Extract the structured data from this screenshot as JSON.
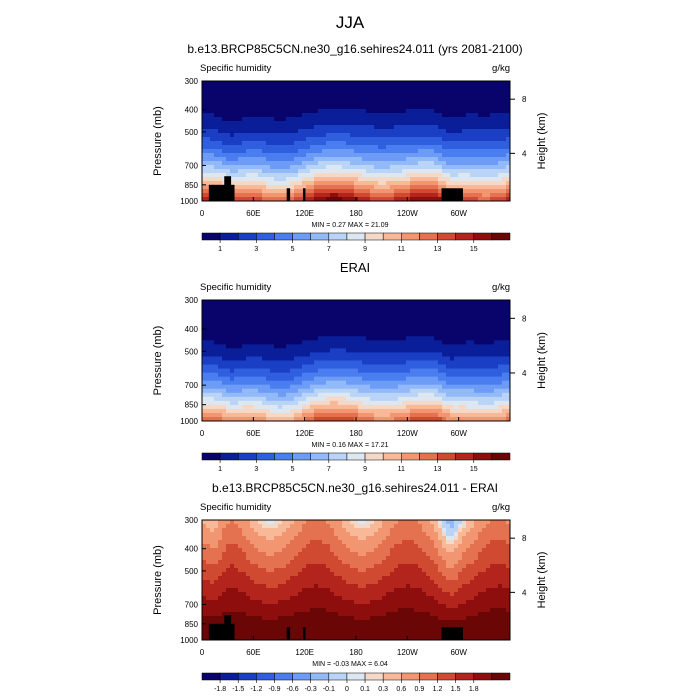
{
  "figure_title": "JJA",
  "units": "g/kg",
  "variable": "Specific humidity",
  "chart_data": [
    {
      "type": "heatmap",
      "title": "b.e13.BRCP85C5CN.ne30_g16.sehires24.011 (yrs 2081-2100)",
      "variable": "Specific humidity",
      "units": "g/kg",
      "xlabel": "",
      "ylabel": "Pressure (mb)",
      "ylabel_right": "Height (km)",
      "x_ticks": [
        "0",
        "60E",
        "120E",
        "180",
        "120W",
        "60W"
      ],
      "y_ticks": [
        "300",
        "400",
        "500",
        "700",
        "850",
        "1000"
      ],
      "y_ticks_right": [
        "8",
        "4"
      ],
      "stats": "MIN =   0.27  MAX =  21.09",
      "min": 0.27,
      "max": 21.09,
      "colorbar_labels": [
        "1",
        "3",
        "5",
        "7",
        "9",
        "11",
        "13",
        "15"
      ],
      "levels": [
        1,
        2,
        3,
        4,
        5,
        6,
        7,
        8,
        9,
        10,
        11,
        12,
        13,
        14,
        15,
        16
      ],
      "kind": "fieldA"
    },
    {
      "type": "heatmap",
      "title": "ERAI",
      "variable": "Specific humidity",
      "units": "g/kg",
      "xlabel": "",
      "ylabel": "Pressure (mb)",
      "ylabel_right": "Height (km)",
      "x_ticks": [
        "0",
        "60E",
        "120E",
        "180",
        "120W",
        "60W"
      ],
      "y_ticks": [
        "300",
        "400",
        "500",
        "700",
        "850",
        "1000"
      ],
      "y_ticks_right": [
        "8",
        "4"
      ],
      "stats": "MIN =   0.16  MAX =  17.21",
      "min": 0.16,
      "max": 17.21,
      "colorbar_labels": [
        "1",
        "3",
        "5",
        "7",
        "9",
        "11",
        "13",
        "15"
      ],
      "levels": [
        1,
        2,
        3,
        4,
        5,
        6,
        7,
        8,
        9,
        10,
        11,
        12,
        13,
        14,
        15,
        16
      ],
      "kind": "fieldB"
    },
    {
      "type": "heatmap",
      "title": "b.e13.BRCP85C5CN.ne30_g16.sehires24.011 - ERAI",
      "variable": "Specific humidity",
      "units": "g/kg",
      "xlabel": "",
      "ylabel": "Pressure (mb)",
      "ylabel_right": "Height (km)",
      "x_ticks": [
        "0",
        "60E",
        "120E",
        "180",
        "120W",
        "60W"
      ],
      "y_ticks": [
        "300",
        "400",
        "500",
        "700",
        "850",
        "1000"
      ],
      "y_ticks_right": [
        "8",
        "4"
      ],
      "stats": "MIN =  -0.03  MAX =   6.04",
      "min": -0.03,
      "max": 6.04,
      "colorbar_labels": [
        "-1.8",
        "-1.5",
        "-1.2",
        "-0.9",
        "-0.6",
        "-0.3",
        "-0.1",
        "0",
        "0.1",
        "0.3",
        "0.6",
        "0.9",
        "1.2",
        "1.5",
        "1.8"
      ],
      "levels": [
        -1.8,
        -1.5,
        -1.2,
        -0.9,
        -0.6,
        -0.3,
        -0.1,
        0,
        0.1,
        0.3,
        0.6,
        0.9,
        1.2,
        1.5,
        1.8
      ],
      "kind": "diff"
    }
  ],
  "palette": [
    "#08046b",
    "#0a1e9a",
    "#1a3fc4",
    "#2f5fde",
    "#4a7ef0",
    "#6c9cf6",
    "#92b9f8",
    "#b9d4f7",
    "#dde7f1",
    "#f5d9c8",
    "#f7b998",
    "#f29671",
    "#e4714f",
    "#d04a32",
    "#b3241c",
    "#8e0d0d",
    "#6b0606"
  ]
}
